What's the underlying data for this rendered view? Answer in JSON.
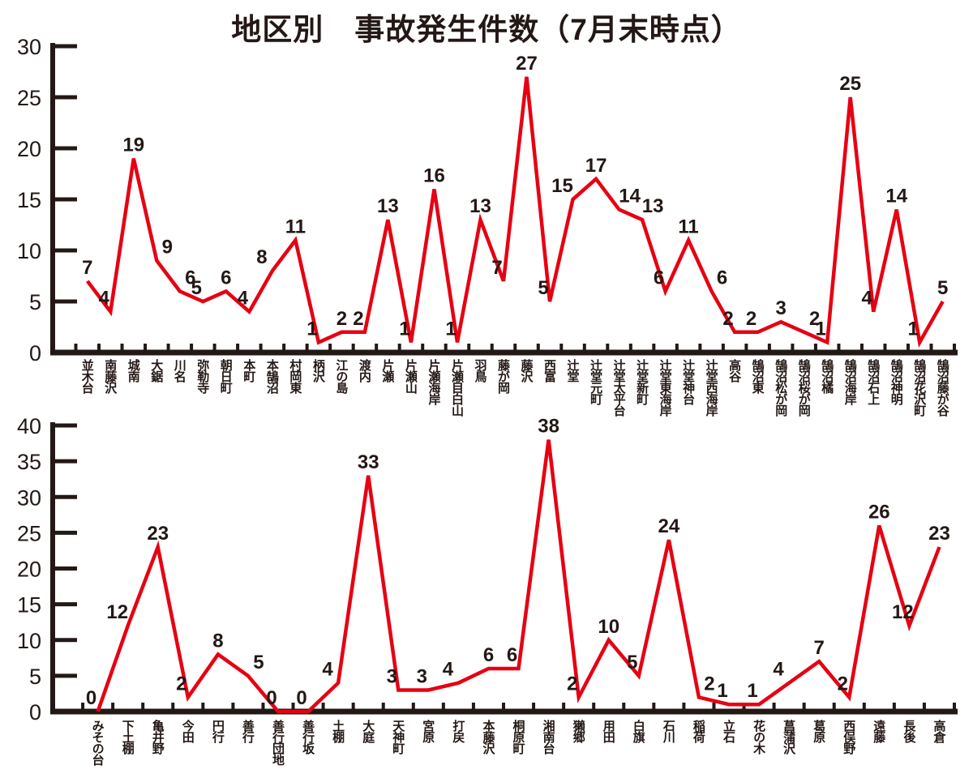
{
  "title": "地区別　事故発生件数（7月末時点）",
  "colors": {
    "line": "#e60012",
    "axis": "#231815",
    "text": "#231815"
  },
  "chart_data": [
    {
      "type": "line",
      "title": "地区別　事故発生件数（7月末時点）",
      "categories": [
        "並木台",
        "南藤沢",
        "城南",
        "大鋸",
        "川名",
        "弥勒寺",
        "朝日町",
        "本町",
        "本鵠沼",
        "村岡東",
        "柄沢",
        "江の島",
        "渡内",
        "片瀬",
        "片瀬山",
        "片瀬海岸",
        "片瀬目白山",
        "羽鳥",
        "藤が岡",
        "藤沢",
        "西富",
        "辻堂",
        "辻堂元町",
        "辻堂太平台",
        "辻堂新町",
        "辻堂東海岸",
        "辻堂神台",
        "辻堂西海岸",
        "高谷",
        "鵠沼東",
        "鵠沼松が岡",
        "鵠沼桜が岡",
        "鵠沼橘",
        "鵠沼海岸",
        "鵠沼石上",
        "鵠沼神明",
        "鵠沼花沢町",
        "鵠沼藤が谷"
      ],
      "values": [
        7,
        4,
        19,
        9,
        6,
        5,
        6,
        4,
        8,
        11,
        1,
        2,
        2,
        13,
        1,
        16,
        1,
        13,
        7,
        27,
        5,
        15,
        17,
        14,
        13,
        6,
        11,
        6,
        2,
        2,
        3,
        2,
        1,
        25,
        4,
        14,
        1,
        5
      ],
      "xlabel": "",
      "ylabel": "",
      "ylim": [
        0,
        30
      ],
      "ytick_step": 5,
      "grid": false,
      "legend": "none",
      "line_color": "#e60012"
    },
    {
      "type": "line",
      "title": "",
      "categories": [
        "みその台",
        "下土棚",
        "亀井野",
        "今田",
        "円行",
        "善行",
        "善行団地",
        "善行坂",
        "土棚",
        "大庭",
        "天神町",
        "宮原",
        "打戻",
        "本藤沢",
        "桐原町",
        "湘南台",
        "獺郷",
        "用田",
        "白旗",
        "石川",
        "稲荷",
        "立石",
        "花の木",
        "菖蒲沢",
        "葛原",
        "西俣野",
        "遠藤",
        "長後",
        "高倉"
      ],
      "values": [
        0,
        12,
        23,
        2,
        8,
        5,
        0,
        0,
        4,
        33,
        3,
        3,
        4,
        6,
        6,
        38,
        2,
        10,
        5,
        24,
        2,
        1,
        1,
        4,
        7,
        2,
        26,
        12,
        23
      ],
      "xlabel": "",
      "ylabel": "",
      "ylim": [
        0,
        40
      ],
      "ytick_step": 5,
      "grid": false,
      "legend": "none",
      "line_color": "#e60012"
    }
  ]
}
